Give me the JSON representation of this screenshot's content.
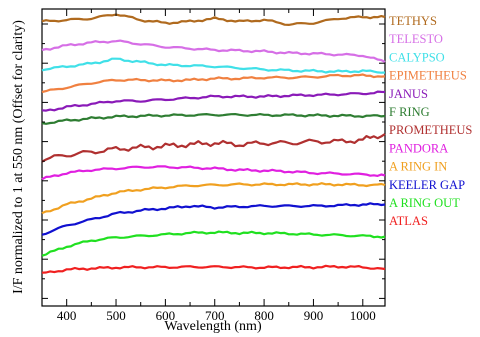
{
  "chart_data": {
    "type": "line",
    "title": "",
    "xlabel": "Wavelength (nm)",
    "ylabel": "I/F normalized to 1 at 550 nm (Offset for clarity)",
    "xlim": [
      350,
      1045
    ],
    "x_ticks": [
      400,
      500,
      600,
      700,
      800,
      900,
      1000
    ],
    "x_tick_labels": [
      "400",
      "500",
      "600",
      "700",
      "800",
      "900",
      "1000"
    ],
    "y_tick_labels_shown": false,
    "grid": false,
    "legend_placement": "right-outside",
    "series": [
      {
        "name": "TETHYS",
        "color": "#b06a1e",
        "x": [
          350,
          400,
          450,
          500,
          550,
          600,
          650,
          700,
          750,
          800,
          850,
          900,
          950,
          1000,
          1045
        ],
        "values": [
          0.995,
          1.0,
          1.005,
          1.02,
          1.0,
          0.99,
          0.995,
          1.005,
          0.995,
          1.0,
          0.985,
          0.99,
          1.005,
          1.01,
          1.01
        ]
      },
      {
        "name": "TELESTO",
        "color": "#d66fe6",
        "x": [
          350,
          400,
          450,
          500,
          550,
          600,
          650,
          700,
          750,
          800,
          850,
          900,
          950,
          1000,
          1045
        ],
        "values": [
          0.9,
          0.915,
          0.925,
          0.93,
          0.92,
          0.91,
          0.905,
          0.9,
          0.898,
          0.895,
          0.89,
          0.888,
          0.885,
          0.882,
          0.86
        ]
      },
      {
        "name": "CALYPSO",
        "color": "#40e0e8",
        "x": [
          350,
          400,
          450,
          500,
          550,
          600,
          650,
          700,
          750,
          800,
          850,
          900,
          950,
          1000,
          1045
        ],
        "values": [
          0.835,
          0.845,
          0.855,
          0.87,
          0.86,
          0.85,
          0.848,
          0.845,
          0.84,
          0.835,
          0.832,
          0.83,
          0.828,
          0.83,
          0.825
        ]
      },
      {
        "name": "EPIMETHEUS",
        "color": "#f08040",
        "x": [
          350,
          400,
          450,
          500,
          550,
          600,
          650,
          700,
          750,
          800,
          850,
          900,
          950,
          1000,
          1045
        ],
        "values": [
          0.76,
          0.775,
          0.79,
          0.8,
          0.8,
          0.798,
          0.8,
          0.805,
          0.805,
          0.808,
          0.808,
          0.81,
          0.815,
          0.815,
          0.812
        ]
      },
      {
        "name": "JANUS",
        "color": "#8a1ab8",
        "x": [
          350,
          400,
          450,
          500,
          550,
          600,
          650,
          700,
          750,
          800,
          850,
          900,
          950,
          1000,
          1045
        ],
        "values": [
          0.695,
          0.71,
          0.72,
          0.73,
          0.73,
          0.735,
          0.74,
          0.745,
          0.745,
          0.745,
          0.748,
          0.75,
          0.752,
          0.755,
          0.76
        ]
      },
      {
        "name": "F RING",
        "color": "#2e7d32",
        "x": [
          350,
          400,
          450,
          500,
          550,
          600,
          650,
          700,
          750,
          800,
          850,
          900,
          950,
          1000,
          1045
        ],
        "values": [
          0.655,
          0.665,
          0.672,
          0.678,
          0.68,
          0.682,
          0.683,
          0.684,
          0.684,
          0.683,
          0.683,
          0.682,
          0.681,
          0.68,
          0.68
        ]
      },
      {
        "name": "PROMETHEUS",
        "color": "#b03030",
        "x": [
          350,
          400,
          450,
          500,
          550,
          600,
          650,
          700,
          750,
          800,
          850,
          900,
          950,
          1000,
          1045
        ],
        "values": [
          0.535,
          0.55,
          0.56,
          0.57,
          0.575,
          0.58,
          0.585,
          0.59,
          0.585,
          0.59,
          0.59,
          0.595,
          0.595,
          0.6,
          0.62
        ]
      },
      {
        "name": "PANDORA",
        "color": "#e020e0",
        "x": [
          350,
          400,
          450,
          500,
          550,
          600,
          650,
          700,
          750,
          800,
          850,
          900,
          950,
          1000,
          1045
        ],
        "values": [
          0.47,
          0.49,
          0.5,
          0.505,
          0.51,
          0.51,
          0.508,
          0.505,
          0.5,
          0.498,
          0.495,
          0.49,
          0.488,
          0.485,
          0.482
        ]
      },
      {
        "name": "A RING IN",
        "color": "#f0a020",
        "x": [
          350,
          400,
          450,
          500,
          550,
          600,
          650,
          700,
          750,
          800,
          850,
          900,
          950,
          1000,
          1045
        ],
        "values": [
          0.355,
          0.385,
          0.405,
          0.425,
          0.435,
          0.442,
          0.448,
          0.45,
          0.452,
          0.452,
          0.452,
          0.452,
          0.452,
          0.45,
          0.45
        ]
      },
      {
        "name": "KEELER GAP",
        "color": "#1010d0",
        "x": [
          350,
          400,
          450,
          500,
          550,
          600,
          650,
          700,
          750,
          800,
          850,
          900,
          950,
          1000,
          1045
        ],
        "values": [
          0.285,
          0.315,
          0.335,
          0.355,
          0.365,
          0.372,
          0.38,
          0.375,
          0.378,
          0.38,
          0.38,
          0.38,
          0.382,
          0.385,
          0.385
        ]
      },
      {
        "name": "A RING OUT",
        "color": "#20e020",
        "x": [
          350,
          400,
          450,
          500,
          550,
          600,
          650,
          700,
          750,
          800,
          850,
          900,
          950,
          1000,
          1045
        ],
        "values": [
          0.215,
          0.245,
          0.265,
          0.275,
          0.28,
          0.285,
          0.29,
          0.292,
          0.29,
          0.29,
          0.288,
          0.285,
          0.283,
          0.28,
          0.278
        ]
      },
      {
        "name": "ATLAS",
        "color": "#f02020",
        "x": [
          350,
          400,
          450,
          500,
          550,
          600,
          650,
          700,
          750,
          800,
          850,
          900,
          950,
          1000,
          1045
        ],
        "values": [
          0.155,
          0.168,
          0.172,
          0.175,
          0.176,
          0.176,
          0.177,
          0.177,
          0.176,
          0.175,
          0.176,
          0.176,
          0.178,
          0.176,
          0.17
        ]
      }
    ]
  }
}
